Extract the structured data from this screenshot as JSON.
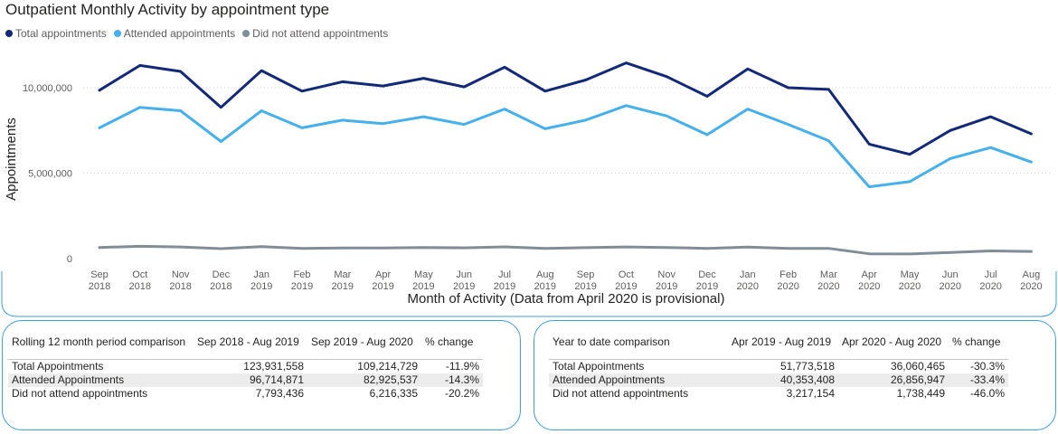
{
  "chart_data": {
    "type": "line",
    "title": "Outpatient Monthly Activity by appointment type",
    "xlabel": "Month of Activity (Data from April 2020 is provisional)",
    "ylabel": "Appointments",
    "ylim": [
      0,
      11500000
    ],
    "yticks": [
      0,
      5000000,
      10000000
    ],
    "ytick_labels": [
      "0",
      "5,000,000",
      "10,000,000"
    ],
    "grid": "horizontal dotted",
    "legend_placement": "top-left",
    "categories": [
      [
        "Sep",
        "2018"
      ],
      [
        "Oct",
        "2018"
      ],
      [
        "Nov",
        "2018"
      ],
      [
        "Dec",
        "2018"
      ],
      [
        "Jan",
        "2019"
      ],
      [
        "Feb",
        "2019"
      ],
      [
        "Mar",
        "2019"
      ],
      [
        "Apr",
        "2019"
      ],
      [
        "May",
        "2019"
      ],
      [
        "Jun",
        "2019"
      ],
      [
        "Jul",
        "2019"
      ],
      [
        "Aug",
        "2019"
      ],
      [
        "Sep",
        "2019"
      ],
      [
        "Oct",
        "2019"
      ],
      [
        "Nov",
        "2019"
      ],
      [
        "Dec",
        "2019"
      ],
      [
        "Jan",
        "2020"
      ],
      [
        "Feb",
        "2020"
      ],
      [
        "Mar",
        "2020"
      ],
      [
        "Apr",
        "2020"
      ],
      [
        "May",
        "2020"
      ],
      [
        "Jun",
        "2020"
      ],
      [
        "Jul",
        "2020"
      ],
      [
        "Aug",
        "2020"
      ]
    ],
    "series": [
      {
        "name": "Total appointments",
        "color": "#12297a",
        "values": [
          9850000,
          11300000,
          10950000,
          8850000,
          11000000,
          9800000,
          10350000,
          10100000,
          10550000,
          10050000,
          11200000,
          9800000,
          10450000,
          11450000,
          10650000,
          9500000,
          11100000,
          10000000,
          9900000,
          6700000,
          6100000,
          7500000,
          8300000,
          7300000
        ]
      },
      {
        "name": "Attended appointments",
        "color": "#45b0ee",
        "values": [
          7650000,
          8850000,
          8650000,
          6850000,
          8650000,
          7650000,
          8100000,
          7900000,
          8300000,
          7850000,
          8750000,
          7600000,
          8100000,
          8950000,
          8350000,
          7250000,
          8750000,
          7850000,
          6900000,
          4200000,
          4500000,
          5850000,
          6500000,
          5650000
        ]
      },
      {
        "name": "Did not attend appointments",
        "color": "#818d98",
        "values": [
          650000,
          720000,
          680000,
          580000,
          700000,
          600000,
          620000,
          620000,
          650000,
          630000,
          690000,
          600000,
          640000,
          680000,
          650000,
          600000,
          670000,
          600000,
          600000,
          280000,
          270000,
          360000,
          450000,
          420000
        ]
      }
    ]
  },
  "rolling": {
    "headers": [
      "Rolling 12 month period comparison",
      "Sep 2018 - Aug 2019",
      "Sep 2019 - Aug 2020",
      "% change"
    ],
    "rows": [
      [
        "Total Appointments",
        "123,931,558",
        "109,214,729",
        "-11.9%"
      ],
      [
        "Attended Appointments",
        "96,714,871",
        "82,925,537",
        "-14.3%"
      ],
      [
        "Did not attend appointments",
        "7,793,436",
        "6,216,335",
        "-20.2%"
      ]
    ]
  },
  "ytd": {
    "headers": [
      "Year to date comparison",
      "Apr 2019 - Aug 2019",
      "Apr 2020 - Aug 2020",
      "% change"
    ],
    "rows": [
      [
        "Total Appointments",
        "51,773,518",
        "36,060,465",
        "-30.3%"
      ],
      [
        "Attended Appointments",
        "40,353,408",
        "26,856,947",
        "-33.4%"
      ],
      [
        "Did not attend appointments",
        "3,217,154",
        "1,738,449",
        "-46.0%"
      ]
    ]
  }
}
